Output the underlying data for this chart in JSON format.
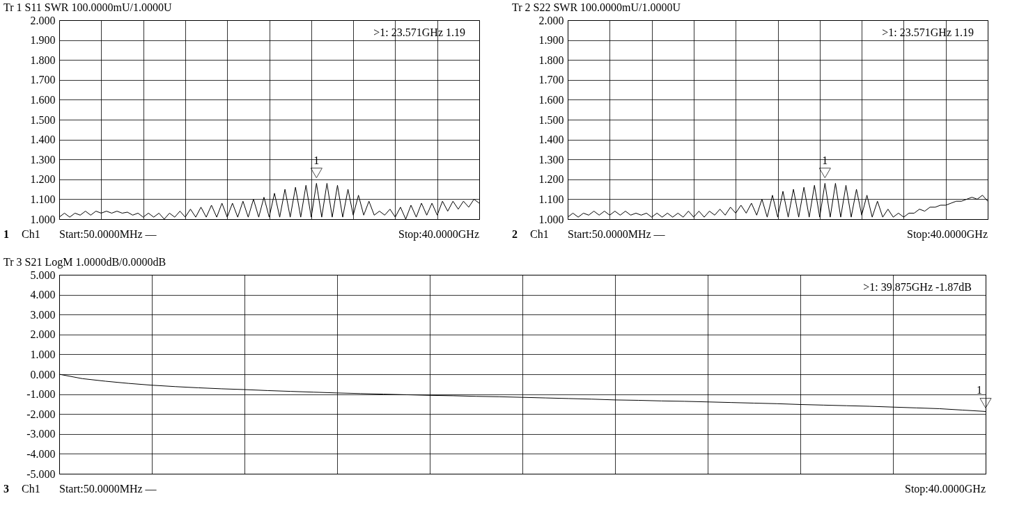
{
  "chart_data": [
    {
      "type": "line",
      "title": "Tr 1  S11 SWR 100.0000mU/1.0000U",
      "ylim": [
        1,
        2
      ],
      "yticks": [
        {
          "value": 1,
          "label": "1.000"
        },
        {
          "value": 1.1,
          "label": "1.100"
        },
        {
          "value": 1.2,
          "label": "1.200"
        },
        {
          "value": 1.3,
          "label": "1.300"
        },
        {
          "value": 1.4,
          "label": "1.400"
        },
        {
          "value": 1.5,
          "label": "1.500"
        },
        {
          "value": 1.6,
          "label": "1.600"
        },
        {
          "value": 1.7,
          "label": "1.700"
        },
        {
          "value": 1.8,
          "label": "1.800"
        },
        {
          "value": 1.9,
          "label": "1.900"
        },
        {
          "value": 2,
          "label": "2.000"
        }
      ],
      "tick_labels": "y",
      "grid": true,
      "categories": [
        null,
        null,
        null,
        null,
        null,
        null,
        null,
        null,
        null,
        null,
        null,
        null,
        null,
        null,
        null,
        null,
        null,
        null,
        null,
        null,
        null,
        null,
        null,
        null,
        null,
        null,
        null,
        null,
        null,
        null,
        null,
        null,
        null,
        null,
        null,
        null,
        null,
        null,
        null,
        null,
        null,
        null,
        null,
        null,
        null,
        null,
        null,
        null,
        null,
        null,
        null,
        null,
        null,
        null,
        null,
        null,
        null,
        null,
        null,
        null,
        null,
        null,
        null,
        null,
        null,
        null,
        null,
        null,
        null,
        null,
        null,
        null,
        null,
        null,
        null,
        null,
        null,
        null,
        null,
        null,
        null
      ],
      "series": [
        {
          "color": "#000000",
          "values": [
            1.01,
            1.03,
            1.01,
            1.03,
            1.02,
            1.04,
            1.02,
            1.04,
            1.03,
            1.04,
            1.03,
            1.04,
            1.03,
            1.035,
            1.02,
            1.03,
            1.01,
            1.03,
            1.01,
            1.03,
            1.0,
            1.03,
            1.01,
            1.04,
            1.01,
            1.05,
            1.01,
            1.06,
            1.01,
            1.07,
            1.01,
            1.08,
            1.01,
            1.08,
            1.01,
            1.09,
            1.01,
            1.1,
            1.01,
            1.11,
            1.01,
            1.13,
            1.01,
            1.15,
            1.01,
            1.16,
            1.01,
            1.17,
            1.01,
            1.18,
            1.01,
            1.18,
            1.01,
            1.17,
            1.01,
            1.15,
            1.02,
            1.12,
            1.02,
            1.09,
            1.02,
            1.04,
            1.02,
            1.05,
            1.01,
            1.06,
            1.0,
            1.07,
            1.01,
            1.08,
            1.02,
            1.08,
            1.02,
            1.09,
            1.04,
            1.09,
            1.05,
            1.09,
            1.06,
            1.1,
            1.08
          ]
        }
      ],
      "annotations": [
        "1",
        "Ch1",
        "Start:50.0000MHz —",
        "Stop:40.0000GHz",
        ">1:   23.571GHz 1.19",
        {
          "text": "1",
          "y": 1.19
        }
      ]
    },
    {
      "type": "line",
      "title": "Tr 2  S22 SWR 100.0000mU/1.0000U",
      "ylim": [
        1,
        2
      ],
      "yticks": [
        {
          "value": 1,
          "label": "1.000"
        },
        {
          "value": 1.1,
          "label": "1.100"
        },
        {
          "value": 1.2,
          "label": "1.200"
        },
        {
          "value": 1.3,
          "label": "1.300"
        },
        {
          "value": 1.4,
          "label": "1.400"
        },
        {
          "value": 1.5,
          "label": "1.500"
        },
        {
          "value": 1.6,
          "label": "1.600"
        },
        {
          "value": 1.7,
          "label": "1.700"
        },
        {
          "value": 1.8,
          "label": "1.800"
        },
        {
          "value": 1.9,
          "label": "1.900"
        },
        {
          "value": 2,
          "label": "2.000"
        }
      ],
      "tick_labels": "y",
      "grid": true,
      "categories": [
        null,
        null,
        null,
        null,
        null,
        null,
        null,
        null,
        null,
        null,
        null,
        null,
        null,
        null,
        null,
        null,
        null,
        null,
        null,
        null,
        null,
        null,
        null,
        null,
        null,
        null,
        null,
        null,
        null,
        null,
        null,
        null,
        null,
        null,
        null,
        null,
        null,
        null,
        null,
        null,
        null,
        null,
        null,
        null,
        null,
        null,
        null,
        null,
        null,
        null,
        null,
        null,
        null,
        null,
        null,
        null,
        null,
        null,
        null,
        null,
        null,
        null,
        null,
        null,
        null,
        null,
        null,
        null,
        null,
        null,
        null,
        null,
        null,
        null,
        null,
        null,
        null,
        null,
        null,
        null,
        null
      ],
      "series": [
        {
          "color": "#000000",
          "values": [
            1.01,
            1.03,
            1.01,
            1.03,
            1.02,
            1.04,
            1.02,
            1.04,
            1.02,
            1.04,
            1.02,
            1.04,
            1.02,
            1.03,
            1.02,
            1.03,
            1.01,
            1.03,
            1.01,
            1.03,
            1.01,
            1.03,
            1.01,
            1.04,
            1.01,
            1.04,
            1.01,
            1.04,
            1.02,
            1.05,
            1.02,
            1.06,
            1.03,
            1.07,
            1.03,
            1.08,
            1.02,
            1.1,
            1.01,
            1.12,
            1.01,
            1.14,
            1.01,
            1.15,
            1.01,
            1.16,
            1.01,
            1.17,
            1.01,
            1.18,
            1.01,
            1.18,
            1.01,
            1.17,
            1.01,
            1.15,
            1.02,
            1.12,
            1.01,
            1.09,
            1.01,
            1.05,
            1.01,
            1.03,
            1.01,
            1.03,
            1.03,
            1.05,
            1.04,
            1.06,
            1.06,
            1.07,
            1.07,
            1.08,
            1.09,
            1.09,
            1.1,
            1.11,
            1.1,
            1.12,
            1.09
          ]
        }
      ],
      "annotations": [
        "2",
        "Ch1",
        "Start:50.0000MHz —",
        "Stop:40.0000GHz",
        ">1:   23.571GHz 1.19",
        {
          "text": "1",
          "y": 1.19
        }
      ]
    },
    {
      "type": "line",
      "title": "Tr 3  S21 LogM 1.0000dB/0.0000dB",
      "ylim": [
        -5,
        5
      ],
      "yticks": [
        {
          "value": -5,
          "label": "-5.000"
        },
        {
          "value": -4,
          "label": "-4.000"
        },
        {
          "value": -3,
          "label": "-3.000"
        },
        {
          "value": -2,
          "label": "-2.000"
        },
        {
          "value": -1,
          "label": "-1.000"
        },
        {
          "value": 0,
          "label": "0.000"
        },
        {
          "value": 1,
          "label": "1.000"
        },
        {
          "value": 2,
          "label": "2.000"
        },
        {
          "value": 3,
          "label": "3.000"
        },
        {
          "value": 4,
          "label": "4.000"
        },
        {
          "value": 5,
          "label": "5.000"
        }
      ],
      "tick_labels": "y",
      "grid": true,
      "categories": [
        null,
        null,
        null,
        null,
        null,
        null,
        null,
        null,
        null,
        null,
        null,
        null,
        null,
        null,
        null,
        null,
        null,
        null,
        null,
        null,
        null,
        null,
        null,
        null,
        null,
        null,
        null,
        null,
        null,
        null,
        null,
        null,
        null,
        null,
        null,
        null,
        null,
        null,
        null,
        null,
        null
      ],
      "series": [
        {
          "color": "#000000",
          "values": [
            0,
            -0.22,
            -0.35,
            -0.46,
            -0.55,
            -0.62,
            -0.68,
            -0.73,
            -0.77,
            -0.82,
            -0.86,
            -0.9,
            -0.94,
            -0.97,
            -1.0,
            -1.03,
            -1.06,
            -1.08,
            -1.11,
            -1.13,
            -1.16,
            -1.19,
            -1.22,
            -1.25,
            -1.29,
            -1.31,
            -1.34,
            -1.36,
            -1.39,
            -1.42,
            -1.45,
            -1.48,
            -1.52,
            -1.55,
            -1.58,
            -1.61,
            -1.65,
            -1.69,
            -1.73,
            -1.8,
            -1.87
          ]
        }
      ],
      "annotations": [
        "3",
        "Ch1",
        "Start:50.0000MHz —",
        "Stop:40.0000GHz",
        ">1:   39.875GHz -1.87dB",
        {
          "text": "1",
          "y": -1.87
        }
      ]
    }
  ]
}
